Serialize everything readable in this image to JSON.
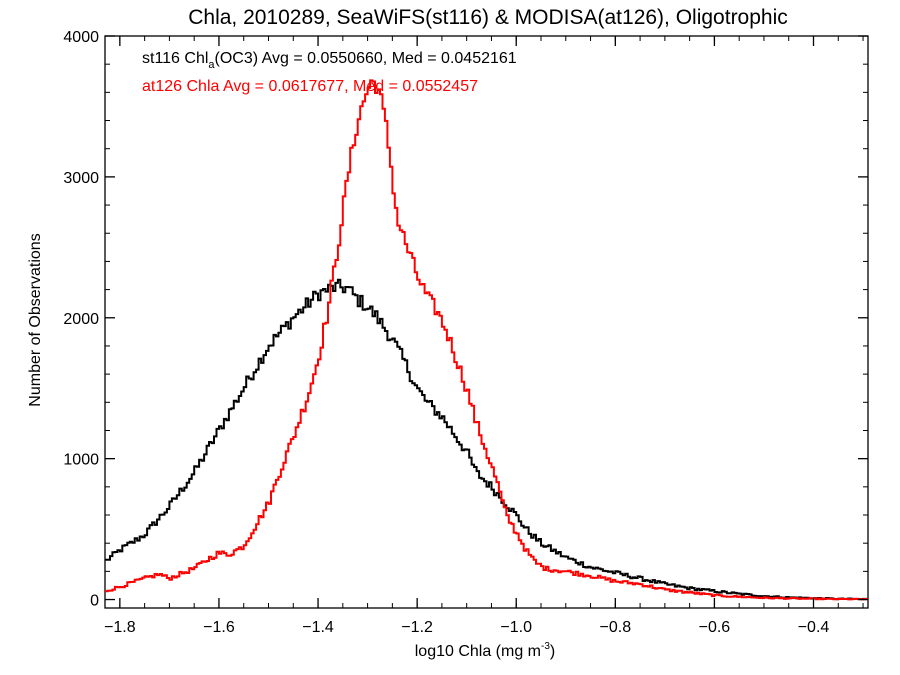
{
  "chart_data": {
    "type": "histogram-step",
    "title": "Chla, 2010289, SeaWiFS(st116) & MODISA(at126), Oligotrophic",
    "xlabel": {
      "main": "log10 Chla (mg m",
      "sup": "-3",
      "end": ")"
    },
    "ylabel": "Number of Observations",
    "xlim": [
      -1.83,
      -0.29
    ],
    "ylim": [
      -60,
      4000
    ],
    "x_ticks": [
      -1.8,
      -1.6,
      -1.4,
      -1.2,
      -1.0,
      -0.8,
      -0.6,
      -0.4
    ],
    "x_tick_labels": [
      "−1.8",
      "−1.6",
      "−1.4",
      "−1.2",
      "−1.0",
      "−0.8",
      "−0.6",
      "−0.4"
    ],
    "y_ticks": [
      0,
      1000,
      2000,
      3000,
      4000
    ],
    "y_tick_labels": [
      "0",
      "1000",
      "2000",
      "3000",
      "4000"
    ],
    "bin_width": 0.005,
    "legend": [
      {
        "prefix": "st116 Chl",
        "sub": "a",
        "suffix": "(OC3) Avg = 0.0550660, Med = 0.0452161",
        "color": "#000000"
      },
      {
        "prefix": "at126 Chla Avg = 0.0617677, Med = 0.0552457",
        "sub": "",
        "suffix": "",
        "color": "#ff0000"
      }
    ],
    "series": [
      {
        "sensor": "st116",
        "color": "#000000",
        "x": [
          -1.83,
          -1.8,
          -1.75,
          -1.7,
          -1.65,
          -1.6,
          -1.55,
          -1.5,
          -1.45,
          -1.42,
          -1.4,
          -1.38,
          -1.36,
          -1.34,
          -1.32,
          -1.3,
          -1.28,
          -1.25,
          -1.22,
          -1.2,
          -1.18,
          -1.15,
          -1.12,
          -1.1,
          -1.08,
          -1.05,
          -1.02,
          -1.0,
          -0.98,
          -0.95,
          -0.92,
          -0.9,
          -0.85,
          -0.8,
          -0.75,
          -0.7,
          -0.65,
          -0.6,
          -0.55,
          -0.5,
          -0.45,
          -0.4,
          -0.35,
          -0.29
        ],
        "y": [
          270,
          350,
          460,
          660,
          900,
          1200,
          1500,
          1800,
          2000,
          2100,
          2170,
          2200,
          2220,
          2210,
          2130,
          2080,
          2000,
          1850,
          1650,
          1500,
          1400,
          1300,
          1150,
          1050,
          900,
          800,
          680,
          600,
          500,
          400,
          340,
          300,
          230,
          190,
          150,
          110,
          80,
          60,
          40,
          25,
          15,
          10,
          5,
          3
        ]
      },
      {
        "sensor": "at126",
        "color": "#ff0000",
        "x": [
          -1.83,
          -1.8,
          -1.75,
          -1.72,
          -1.7,
          -1.65,
          -1.62,
          -1.6,
          -1.58,
          -1.55,
          -1.52,
          -1.5,
          -1.48,
          -1.45,
          -1.42,
          -1.4,
          -1.38,
          -1.36,
          -1.34,
          -1.32,
          -1.3,
          -1.29,
          -1.28,
          -1.27,
          -1.26,
          -1.25,
          -1.24,
          -1.22,
          -1.2,
          -1.18,
          -1.16,
          -1.14,
          -1.12,
          -1.1,
          -1.08,
          -1.06,
          -1.04,
          -1.02,
          -1.0,
          -0.98,
          -0.96,
          -0.94,
          -0.92,
          -0.9,
          -0.85,
          -0.8,
          -0.75,
          -0.7,
          -0.65,
          -0.6,
          -0.55,
          -0.5,
          -0.45,
          -0.4,
          -0.35,
          -0.29
        ],
        "y": [
          60,
          90,
          150,
          180,
          150,
          220,
          290,
          330,
          320,
          380,
          560,
          680,
          880,
          1150,
          1450,
          1700,
          2050,
          2500,
          3000,
          3400,
          3620,
          3680,
          3650,
          3500,
          3300,
          3000,
          2700,
          2500,
          2300,
          2150,
          2050,
          1900,
          1700,
          1500,
          1250,
          1050,
          850,
          600,
          480,
          350,
          260,
          220,
          210,
          200,
          170,
          130,
          110,
          70,
          50,
          30,
          20,
          12,
          8,
          5,
          3,
          2
        ]
      }
    ]
  }
}
